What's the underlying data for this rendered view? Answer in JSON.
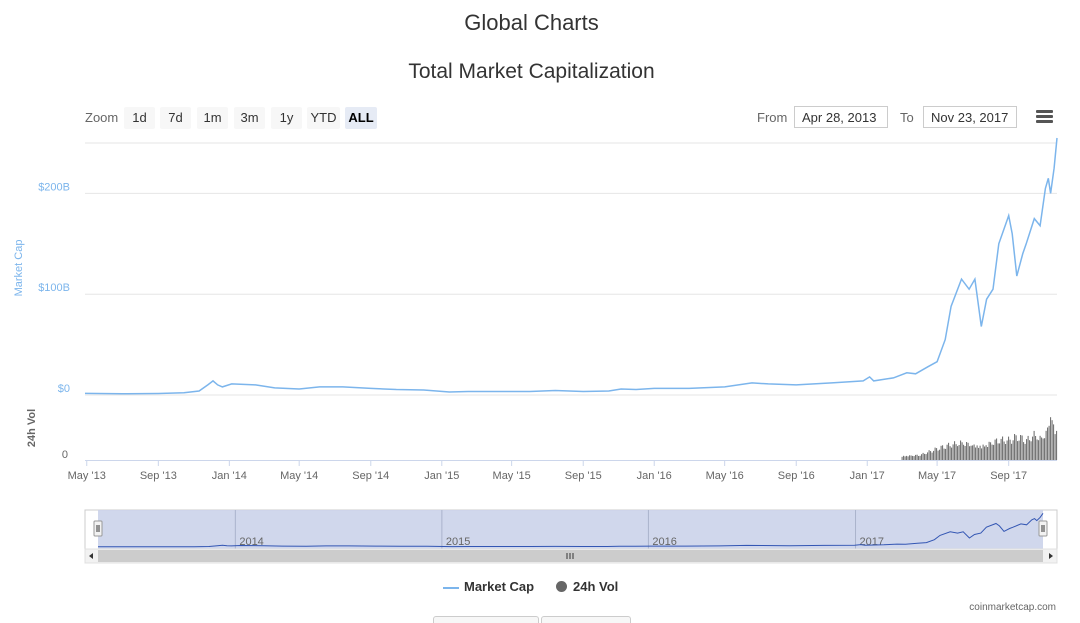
{
  "page_title": "Global Charts",
  "zoom": {
    "label": "Zoom",
    "buttons": [
      "1d",
      "7d",
      "1m",
      "3m",
      "1y",
      "YTD",
      "ALL"
    ],
    "active": "ALL"
  },
  "range": {
    "from_label": "From",
    "from_value": "Apr 28, 2013",
    "to_label": "To",
    "to_value": "Nov 23, 2017"
  },
  "legend": {
    "market_cap": "Market Cap",
    "volume": "24h Vol"
  },
  "credit": "coinmarketcap.com",
  "colors": {
    "market_cap": "#7cb5ec",
    "volume": "#666666",
    "navigator_fill": "#cbd3ea",
    "navigator_line": "#3356b3"
  },
  "chart_data": {
    "type": "line",
    "title": "Total Market Capitalization",
    "xlabel": "",
    "x_ticks": [
      "May '13",
      "Sep '13",
      "Jan '14",
      "May '14",
      "Sep '14",
      "Jan '15",
      "May '15",
      "Sep '15",
      "Jan '16",
      "May '16",
      "Sep '16",
      "Jan '17",
      "May '17",
      "Sep '17"
    ],
    "y_axis": {
      "label": "Market Cap",
      "ticks": [
        "$0",
        "$100B",
        "$200B"
      ],
      "range": [
        0,
        250
      ]
    },
    "volume_axis": {
      "label": "24h Vol",
      "ticks": [
        "0"
      ]
    },
    "series": [
      {
        "name": "Market Cap",
        "unit": "$B",
        "points": [
          [
            "2013-04-28",
            1.6
          ],
          [
            "2013-07-01",
            1.2
          ],
          [
            "2013-09-01",
            1.5
          ],
          [
            "2013-10-15",
            2.2
          ],
          [
            "2013-11-10",
            4
          ],
          [
            "2013-11-25",
            10
          ],
          [
            "2013-12-04",
            14
          ],
          [
            "2013-12-12",
            10
          ],
          [
            "2013-12-20",
            8
          ],
          [
            "2014-01-05",
            11
          ],
          [
            "2014-02-15",
            10
          ],
          [
            "2014-03-20",
            7
          ],
          [
            "2014-05-01",
            6
          ],
          [
            "2014-06-05",
            8
          ],
          [
            "2014-07-15",
            8
          ],
          [
            "2014-09-01",
            6.5
          ],
          [
            "2014-10-15",
            5.5
          ],
          [
            "2014-12-01",
            5
          ],
          [
            "2015-01-14",
            3
          ],
          [
            "2015-02-15",
            3.5
          ],
          [
            "2015-04-01",
            3.5
          ],
          [
            "2015-06-01",
            3.5
          ],
          [
            "2015-07-15",
            4.5
          ],
          [
            "2015-09-01",
            3.5
          ],
          [
            "2015-10-15",
            4
          ],
          [
            "2015-11-05",
            6
          ],
          [
            "2015-12-01",
            5.5
          ],
          [
            "2016-01-01",
            6.5
          ],
          [
            "2016-03-01",
            6.5
          ],
          [
            "2016-05-01",
            8
          ],
          [
            "2016-06-17",
            12
          ],
          [
            "2016-07-15",
            11
          ],
          [
            "2016-09-01",
            10
          ],
          [
            "2016-11-01",
            12
          ],
          [
            "2016-12-25",
            14
          ],
          [
            "2017-01-05",
            18
          ],
          [
            "2017-01-12",
            14
          ],
          [
            "2017-02-15",
            17
          ],
          [
            "2017-03-10",
            22
          ],
          [
            "2017-03-25",
            21
          ],
          [
            "2017-04-15",
            28
          ],
          [
            "2017-05-01",
            33
          ],
          [
            "2017-05-15",
            55
          ],
          [
            "2017-05-25",
            88
          ],
          [
            "2017-06-12",
            115
          ],
          [
            "2017-06-25",
            105
          ],
          [
            "2017-07-05",
            115
          ],
          [
            "2017-07-16",
            68
          ],
          [
            "2017-07-25",
            95
          ],
          [
            "2017-08-05",
            105
          ],
          [
            "2017-08-15",
            150
          ],
          [
            "2017-09-01",
            178
          ],
          [
            "2017-09-07",
            160
          ],
          [
            "2017-09-15",
            118
          ],
          [
            "2017-09-25",
            140
          ],
          [
            "2017-10-01",
            150
          ],
          [
            "2017-10-15",
            175
          ],
          [
            "2017-10-25",
            168
          ],
          [
            "2017-11-03",
            205
          ],
          [
            "2017-11-08",
            215
          ],
          [
            "2017-11-12",
            200
          ],
          [
            "2017-11-18",
            225
          ],
          [
            "2017-11-23",
            255
          ]
        ]
      },
      {
        "name": "24h Vol",
        "type": "column",
        "note_scale": "relative",
        "points": [
          [
            "2017-03-01",
            0.08
          ],
          [
            "2017-04-01",
            0.1
          ],
          [
            "2017-05-01",
            0.22
          ],
          [
            "2017-05-25",
            0.3
          ],
          [
            "2017-06-15",
            0.35
          ],
          [
            "2017-07-01",
            0.3
          ],
          [
            "2017-07-16",
            0.28
          ],
          [
            "2017-08-01",
            0.35
          ],
          [
            "2017-08-15",
            0.4
          ],
          [
            "2017-09-01",
            0.38
          ],
          [
            "2017-09-15",
            0.45
          ],
          [
            "2017-10-01",
            0.38
          ],
          [
            "2017-10-15",
            0.5
          ],
          [
            "2017-10-25",
            0.42
          ],
          [
            "2017-11-05",
            0.58
          ],
          [
            "2017-11-12",
            0.95
          ],
          [
            "2017-11-18",
            0.6
          ],
          [
            "2017-11-23",
            0.55
          ]
        ]
      }
    ],
    "navigator": {
      "labels": [
        "2014",
        "2015",
        "2016",
        "2017"
      ]
    },
    "grid": true,
    "legend_position": "bottom-center"
  }
}
